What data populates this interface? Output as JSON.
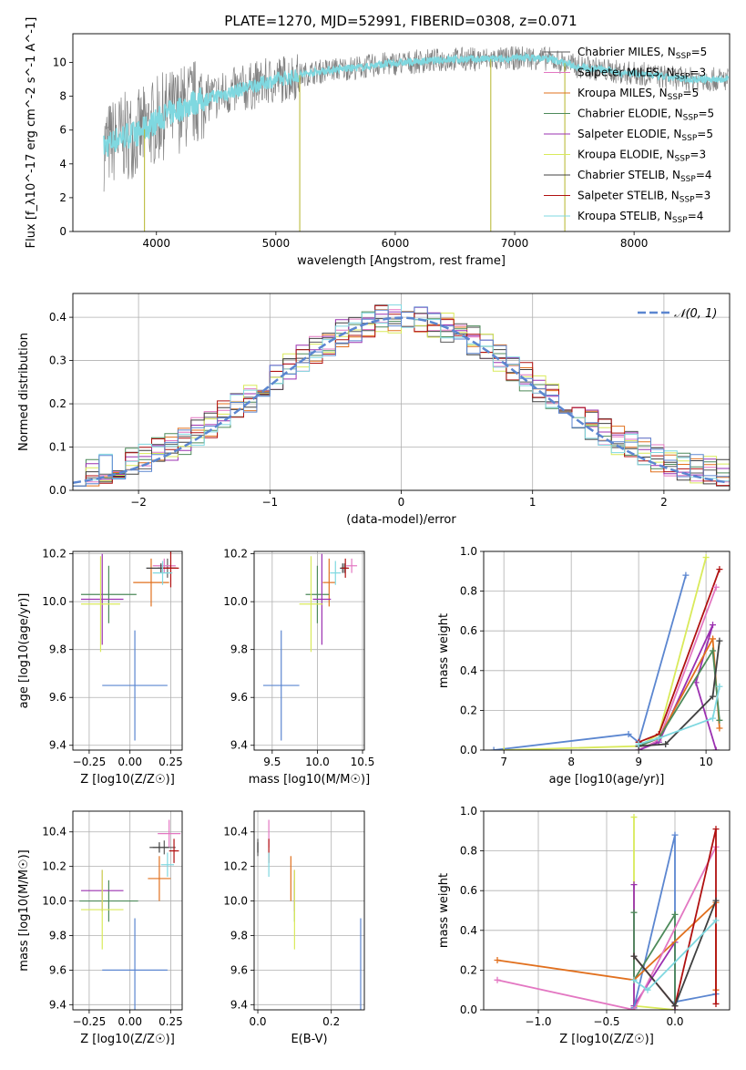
{
  "figure": {
    "title": "PLATE=1270, MJD=52991, FIBERID=0308, z=0.071"
  },
  "series_styles": [
    {
      "name": "Chabrier MILES",
      "nssp": "5",
      "color": "#5a5a5a"
    },
    {
      "name": "Salpeter MILES",
      "nssp": "3",
      "color": "#e377c2"
    },
    {
      "name": "Kroupa MILES",
      "nssp": "5",
      "color": "#e1701e"
    },
    {
      "name": "Chabrier ELODIE",
      "nssp": "5",
      "color": "#4d8a5a"
    },
    {
      "name": "Salpeter ELODIE",
      "nssp": "5",
      "color": "#9b30b0"
    },
    {
      "name": "Kroupa ELODIE",
      "nssp": "3",
      "color": "#d9ea5a"
    },
    {
      "name": "Chabrier STELIB",
      "nssp": "4",
      "color": "#404040"
    },
    {
      "name": "Salpeter STELIB",
      "nssp": "3",
      "color": "#b01010"
    },
    {
      "name": "Kroupa STELIB",
      "nssp": "4",
      "color": "#7fd8e0"
    }
  ],
  "chart_data": [
    {
      "id": "spectrum",
      "type": "line",
      "xlabel": "wavelength [Angstrom, rest frame]",
      "ylabel": "Flux [f_λ10^-17 erg cm^-2 s^-1 A^-1]",
      "xlim": [
        3300,
        8800
      ],
      "ylim": [
        0,
        11.7
      ],
      "xticks": [
        4000,
        5000,
        6000,
        7000,
        8000
      ],
      "yticks": [
        0,
        2,
        4,
        6,
        8,
        10
      ],
      "data_color": "#808080",
      "model_color": "#7fd8e0",
      "continuum": {
        "x": [
          3560,
          3700,
          3850,
          3950,
          4050,
          4150,
          4300,
          4500,
          4700,
          4900,
          5100,
          5300,
          5500,
          5700,
          5900,
          6100,
          6300,
          6500,
          6700,
          6900,
          7100,
          7300,
          7500,
          7700,
          7900,
          8100,
          8300,
          8500,
          8700
        ],
        "y": [
          5.0,
          5.6,
          5.8,
          6.3,
          6.8,
          7.1,
          7.6,
          8.0,
          8.4,
          8.8,
          9.1,
          9.4,
          9.6,
          9.7,
          9.9,
          10.0,
          10.1,
          10.2,
          10.2,
          10.2,
          10.3,
          10.2,
          9.8,
          9.6,
          9.4,
          9.3,
          9.1,
          9.0,
          9.0
        ]
      },
      "noise_amplitude": 1.2,
      "grid": false,
      "legend_position": "upper right"
    },
    {
      "id": "residuals",
      "type": "histogram",
      "xlabel": "(data-model)/error",
      "ylabel": "Normed distribution",
      "xlim": [
        -2.5,
        2.5
      ],
      "ylim": [
        0,
        0.455
      ],
      "xticks": [
        -2,
        -1,
        0,
        1,
        2
      ],
      "yticks": [
        0,
        0.1,
        0.2,
        0.3,
        0.4
      ],
      "bin_width": 0.1,
      "gaussian": {
        "mean": 0,
        "sigma": 1,
        "color": "#5b86d0",
        "style": "dashed"
      },
      "legend_label": "𝒩(0, 1)",
      "grid": true
    },
    {
      "id": "age_vs_z",
      "type": "errorbar",
      "xlabel": "Z [log10(Z/Z☉)]",
      "ylabel": "age [log10(age/yr)]",
      "xlim": [
        -0.35,
        0.32
      ],
      "ylim": [
        9.38,
        10.21
      ],
      "xticks": [
        -0.25,
        0,
        0.25
      ],
      "yticks": [
        9.4,
        9.6,
        9.8,
        10.0,
        10.2
      ],
      "points": [
        {
          "x": 0.23,
          "y": 10.14,
          "xerr": 0.06,
          "yerr": 0.04,
          "series": "Chabrier MILES"
        },
        {
          "x": 0.21,
          "y": 10.15,
          "xerr": 0.07,
          "yerr": 0.03,
          "series": "Salpeter MILES"
        },
        {
          "x": 0.13,
          "y": 10.08,
          "xerr": 0.11,
          "yerr": 0.1,
          "series": "Kroupa MILES"
        },
        {
          "x": -0.13,
          "y": 10.03,
          "xerr": 0.17,
          "yerr": 0.12,
          "series": "Chabrier ELODIE"
        },
        {
          "x": -0.17,
          "y": 10.01,
          "xerr": 0.13,
          "yerr": 0.19,
          "series": "Salpeter ELODIE"
        },
        {
          "x": -0.18,
          "y": 9.99,
          "xerr": 0.12,
          "yerr": 0.2,
          "series": "Kroupa ELODIE"
        },
        {
          "x": 0.19,
          "y": 10.14,
          "xerr": 0.09,
          "yerr": 0.02,
          "series": "Chabrier STELIB"
        },
        {
          "x": 0.25,
          "y": 10.14,
          "xerr": 0.05,
          "yerr": 0.08,
          "series": "Salpeter STELIB"
        },
        {
          "x": 0.2,
          "y": 10.12,
          "xerr": 0.06,
          "yerr": 0.05,
          "series": "Kroupa STELIB"
        },
        {
          "x": 0.03,
          "y": 9.65,
          "xerr": 0.2,
          "yerr": 0.23,
          "series": "Kroupa MILES",
          "color": "#5b86d0"
        }
      ],
      "grid": true
    },
    {
      "id": "age_vs_mass",
      "type": "errorbar",
      "xlabel": "mass [log10(M/M☉)]",
      "ylabel": "",
      "xlim": [
        9.3,
        10.52
      ],
      "ylim": [
        9.38,
        10.21
      ],
      "xticks": [
        9.5,
        10.0,
        10.5
      ],
      "yticks": [
        9.4,
        9.6,
        9.8,
        10.0,
        10.2
      ],
      "points": [
        {
          "x": 10.3,
          "y": 10.14,
          "xerr": 0.04,
          "yerr": 0.02,
          "series": "Chabrier MILES"
        },
        {
          "x": 10.38,
          "y": 10.15,
          "xerr": 0.06,
          "yerr": 0.03,
          "series": "Salpeter MILES"
        },
        {
          "x": 10.13,
          "y": 10.08,
          "xerr": 0.07,
          "yerr": 0.1,
          "series": "Kroupa MILES"
        },
        {
          "x": 10.0,
          "y": 10.03,
          "xerr": 0.13,
          "yerr": 0.12,
          "series": "Chabrier ELODIE"
        },
        {
          "x": 10.05,
          "y": 10.01,
          "xerr": 0.1,
          "yerr": 0.19,
          "series": "Salpeter ELODIE"
        },
        {
          "x": 9.93,
          "y": 9.99,
          "xerr": 0.13,
          "yerr": 0.2,
          "series": "Kroupa ELODIE"
        },
        {
          "x": 10.28,
          "y": 10.14,
          "xerr": 0.03,
          "yerr": 0.02,
          "series": "Chabrier STELIB"
        },
        {
          "x": 10.31,
          "y": 10.14,
          "xerr": 0.04,
          "yerr": 0.04,
          "series": "Salpeter STELIB"
        },
        {
          "x": 10.2,
          "y": 10.12,
          "xerr": 0.06,
          "yerr": 0.05,
          "series": "Kroupa STELIB"
        },
        {
          "x": 9.6,
          "y": 9.65,
          "xerr": 0.2,
          "yerr": 0.23,
          "series": "Kroupa MILES",
          "color": "#5b86d0"
        }
      ],
      "grid": true
    },
    {
      "id": "weight_vs_age",
      "type": "line",
      "xlabel": "age [log10(age/yr)]",
      "ylabel": "mass weight",
      "xlim": [
        6.7,
        10.35
      ],
      "ylim": [
        0,
        1.0
      ],
      "xticks": [
        7,
        8,
        9,
        10
      ],
      "yticks": [
        0,
        0.2,
        0.4,
        0.6,
        0.8,
        1.0
      ],
      "series": [
        {
          "name": "Kroupa MILES",
          "color": "#5b86d0",
          "x": [
            6.85,
            8.85,
            9.0,
            9.7
          ],
          "y": [
            0.0,
            0.08,
            0.04,
            0.88
          ]
        },
        {
          "name": "Kroupa ELODIE",
          "color": "#d9ea5a",
          "x": [
            7.0,
            9.0,
            9.3,
            10.0
          ],
          "y": [
            0.0,
            0.02,
            0.08,
            0.97
          ]
        },
        {
          "name": "Salpeter STELIB",
          "color": "#b01010",
          "x": [
            9.0,
            9.3,
            10.2
          ],
          "y": [
            0.04,
            0.08,
            0.91
          ]
        },
        {
          "name": "Salpeter MILES",
          "color": "#e377c2",
          "x": [
            9.0,
            9.3,
            10.15
          ],
          "y": [
            0.0,
            0.05,
            0.82
          ]
        },
        {
          "name": "Salpeter ELODIE",
          "color": "#9b30b0",
          "x": [
            9.0,
            9.3,
            10.1,
            9.85,
            10.15
          ],
          "y": [
            0.0,
            0.04,
            0.63,
            0.34,
            0.0
          ]
        },
        {
          "name": "Kroupa MILES b",
          "color": "#e1701e",
          "x": [
            9.0,
            9.3,
            10.1,
            10.2
          ],
          "y": [
            0.02,
            0.06,
            0.56,
            0.11
          ]
        },
        {
          "name": "Chabrier ELODIE",
          "color": "#4d8a5a",
          "x": [
            9.0,
            9.3,
            10.1,
            10.2
          ],
          "y": [
            0.02,
            0.06,
            0.5,
            0.15
          ]
        },
        {
          "name": "Chabrier STELIB",
          "color": "#404040",
          "x": [
            9.0,
            9.4,
            10.1,
            10.2
          ],
          "y": [
            0.02,
            0.03,
            0.27,
            0.55
          ]
        },
        {
          "name": "Kroupa STELIB",
          "color": "#7fd8e0",
          "x": [
            9.0,
            9.3,
            10.1,
            10.2
          ],
          "y": [
            0.03,
            0.06,
            0.16,
            0.32
          ]
        }
      ],
      "grid": true
    },
    {
      "id": "mass_vs_z",
      "type": "errorbar",
      "xlabel": "Z [log10(Z/Z☉)]",
      "ylabel": "mass [log10(M/M☉)]",
      "xlim": [
        -0.35,
        0.32
      ],
      "ylim": [
        9.37,
        10.52
      ],
      "xticks": [
        -0.25,
        0,
        0.25
      ],
      "yticks": [
        9.4,
        9.6,
        9.8,
        10.0,
        10.2,
        10.4
      ],
      "points": [
        {
          "x": 0.21,
          "y": 10.31,
          "xerr": 0.07,
          "yerr": 0.04,
          "series": "Chabrier MILES"
        },
        {
          "x": 0.24,
          "y": 10.39,
          "xerr": 0.07,
          "yerr": 0.08,
          "series": "Salpeter MILES"
        },
        {
          "x": 0.18,
          "y": 10.13,
          "xerr": 0.07,
          "yerr": 0.13,
          "series": "Kroupa MILES"
        },
        {
          "x": -0.13,
          "y": 10.0,
          "xerr": 0.18,
          "yerr": 0.12,
          "series": "Chabrier ELODIE"
        },
        {
          "x": -0.17,
          "y": 10.06,
          "xerr": 0.13,
          "yerr": 0.12,
          "series": "Salpeter ELODIE"
        },
        {
          "x": -0.17,
          "y": 9.95,
          "xerr": 0.13,
          "yerr": 0.23,
          "series": "Kroupa ELODIE"
        },
        {
          "x": 0.18,
          "y": 10.31,
          "xerr": 0.06,
          "yerr": 0.03,
          "series": "Chabrier STELIB"
        },
        {
          "x": 0.27,
          "y": 10.29,
          "xerr": 0.03,
          "yerr": 0.07,
          "series": "Salpeter STELIB"
        },
        {
          "x": 0.23,
          "y": 10.21,
          "xerr": 0.04,
          "yerr": 0.07,
          "series": "Kroupa STELIB"
        },
        {
          "x": 0.03,
          "y": 9.6,
          "xerr": 0.2,
          "yerr": 0.3,
          "series": "Kroupa MILES",
          "color": "#5b86d0"
        }
      ],
      "grid": true
    },
    {
      "id": "mass_vs_ebv",
      "type": "errorbar",
      "xlabel": "E(B-V)",
      "ylabel": "",
      "xlim": [
        -0.01,
        0.29
      ],
      "ylim": [
        9.37,
        10.52
      ],
      "xticks": [
        0.0,
        0.2
      ],
      "yticks": [
        9.4,
        9.6,
        9.8,
        10.0,
        10.2,
        10.4
      ],
      "points": [
        {
          "x": 0.0,
          "y": 10.31,
          "xerr": 0,
          "yerr": 0.05,
          "series": "Chabrier MILES"
        },
        {
          "x": 0.03,
          "y": 10.39,
          "xerr": 0,
          "yerr": 0.08,
          "series": "Salpeter MILES"
        },
        {
          "x": 0.09,
          "y": 10.13,
          "xerr": 0,
          "yerr": 0.13,
          "series": "Kroupa MILES"
        },
        {
          "x": 0.1,
          "y": 10.0,
          "xerr": 0,
          "yerr": 0.12,
          "series": "Chabrier ELODIE"
        },
        {
          "x": 0.1,
          "y": 10.06,
          "xerr": 0,
          "yerr": 0.12,
          "series": "Salpeter ELODIE"
        },
        {
          "x": 0.1,
          "y": 9.95,
          "xerr": 0,
          "yerr": 0.23,
          "series": "Kroupa ELODIE"
        },
        {
          "x": 0.0,
          "y": 10.31,
          "xerr": 0,
          "yerr": 0.03,
          "series": "Chabrier STELIB"
        },
        {
          "x": 0.03,
          "y": 10.29,
          "xerr": 0,
          "yerr": 0.07,
          "series": "Salpeter STELIB"
        },
        {
          "x": 0.03,
          "y": 10.21,
          "xerr": 0,
          "yerr": 0.07,
          "series": "Kroupa STELIB"
        },
        {
          "x": 0.28,
          "y": 9.6,
          "xerr": 0,
          "yerr": 0.3,
          "series": "Kroupa MILES",
          "color": "#5b86d0"
        }
      ],
      "grid": true
    },
    {
      "id": "weight_vs_z",
      "type": "line",
      "xlabel": "Z [log10(Z/Z☉)]",
      "ylabel": "mass weight",
      "xlim": [
        -1.4,
        0.4
      ],
      "ylim": [
        0,
        1.0
      ],
      "xticks": [
        -1.0,
        -0.5,
        0.0
      ],
      "yticks": [
        0,
        0.2,
        0.4,
        0.6,
        0.8,
        1.0
      ],
      "series": [
        {
          "name": "Kroupa ELODIE",
          "color": "#d9ea5a",
          "x": [
            -0.3,
            -0.3,
            0.0
          ],
          "y": [
            0.97,
            0.02,
            0.0
          ]
        },
        {
          "name": "Salpeter ELODIE",
          "color": "#9b30b0",
          "x": [
            -0.3,
            -0.3,
            0.0,
            0.0
          ],
          "y": [
            0.63,
            0.02,
            0.34,
            0.0
          ]
        },
        {
          "name": "Kroupa MILES blue",
          "color": "#5b86d0",
          "x": [
            -0.3,
            0.0,
            0.0,
            0.3
          ],
          "y": [
            0.01,
            0.88,
            0.04,
            0.08
          ]
        },
        {
          "name": "Chabrier ELODIE",
          "color": "#4d8a5a",
          "x": [
            -0.3,
            -0.3,
            0.0,
            0.0
          ],
          "y": [
            0.49,
            0.15,
            0.48,
            0.02
          ]
        },
        {
          "name": "Kroupa MILES",
          "color": "#e1701e",
          "x": [
            -1.3,
            -0.3,
            0.3,
            0.3
          ],
          "y": [
            0.25,
            0.15,
            0.54,
            0.1
          ]
        },
        {
          "name": "Salpeter MILES",
          "color": "#e377c2",
          "x": [
            -1.3,
            -0.3,
            0.3
          ],
          "y": [
            0.15,
            0.0,
            0.82
          ]
        },
        {
          "name": "Salpeter STELIB",
          "color": "#b01010",
          "x": [
            -0.3,
            0.0,
            0.3,
            0.3
          ],
          "y": [
            0.27,
            0.02,
            0.91,
            0.03
          ]
        },
        {
          "name": "Chabrier STELIB",
          "color": "#404040",
          "x": [
            -0.3,
            0.0,
            0.3
          ],
          "y": [
            0.27,
            0.02,
            0.55
          ]
        },
        {
          "name": "Kroupa STELIB",
          "color": "#7fd8e0",
          "x": [
            -0.3,
            -0.2,
            0.3
          ],
          "y": [
            0.15,
            0.1,
            0.45
          ]
        }
      ],
      "grid": true
    }
  ]
}
